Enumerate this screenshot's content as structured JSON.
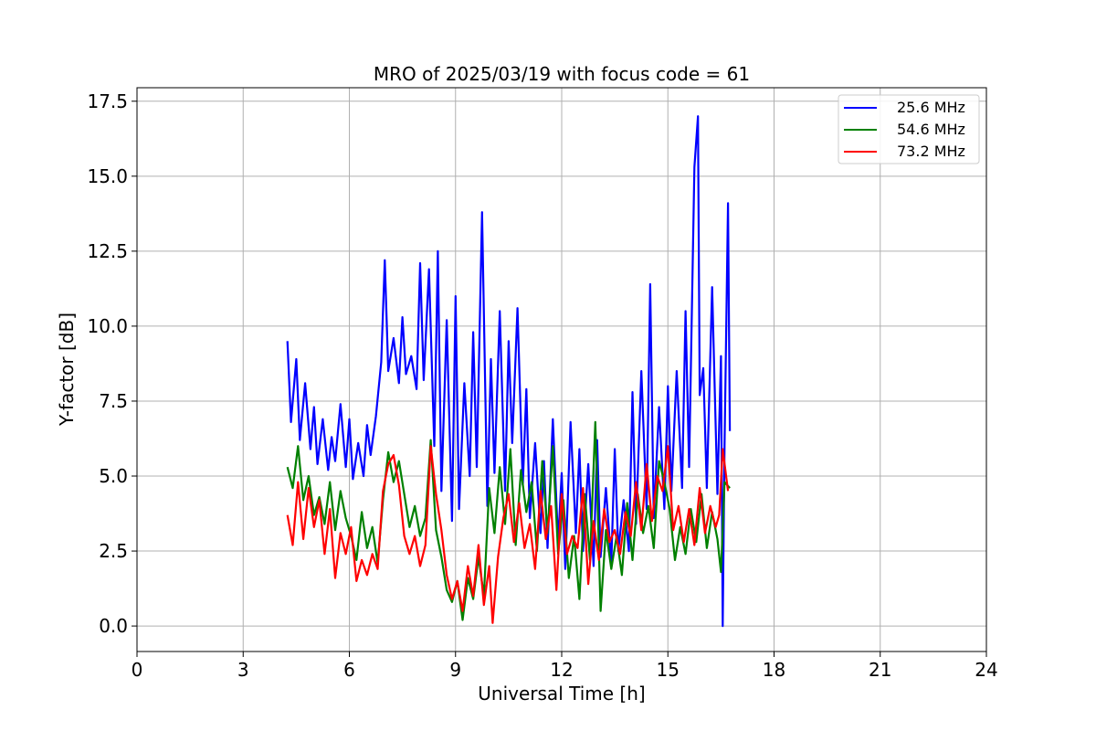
{
  "chart_data": {
    "type": "line",
    "title": "MRO of 2025/03/19 with focus code = 61",
    "xlabel": "Universal Time [h]",
    "ylabel": "Y-factor [dB]",
    "xlim": [
      0,
      24
    ],
    "ylim": [
      -0.85,
      17.95
    ],
    "xticks": [
      0,
      3,
      6,
      9,
      12,
      15,
      18,
      21,
      24
    ],
    "xtick_labels": [
      "0",
      "3",
      "6",
      "9",
      "12",
      "15",
      "18",
      "21",
      "24"
    ],
    "yticks": [
      0,
      2.5,
      5,
      7.5,
      10,
      12.5,
      15,
      17.5
    ],
    "ytick_labels": [
      "0.0",
      "2.5",
      "5.0",
      "7.5",
      "10.0",
      "12.5",
      "15.0",
      "17.5"
    ],
    "grid": true,
    "legend_position": "top-right",
    "series": [
      {
        "name": "25.6 MHz",
        "color": "#0000ff",
        "x": [
          4.25,
          4.35,
          4.5,
          4.6,
          4.75,
          4.9,
          5.0,
          5.1,
          5.25,
          5.4,
          5.5,
          5.6,
          5.75,
          5.9,
          6.0,
          6.1,
          6.25,
          6.4,
          6.5,
          6.6,
          6.75,
          6.9,
          7.0,
          7.1,
          7.25,
          7.4,
          7.5,
          7.6,
          7.75,
          7.9,
          8.0,
          8.1,
          8.25,
          8.4,
          8.5,
          8.6,
          8.75,
          8.9,
          9.0,
          9.1,
          9.25,
          9.4,
          9.5,
          9.6,
          9.75,
          9.9,
          10.0,
          10.1,
          10.25,
          10.4,
          10.5,
          10.6,
          10.75,
          10.9,
          11.0,
          11.1,
          11.25,
          11.4,
          11.5,
          11.6,
          11.75,
          11.9,
          12.0,
          12.1,
          12.25,
          12.4,
          12.5,
          12.6,
          12.75,
          12.9,
          13.0,
          13.1,
          13.25,
          13.4,
          13.5,
          13.6,
          13.75,
          13.9,
          14.0,
          14.1,
          14.25,
          14.4,
          14.5,
          14.6,
          14.75,
          14.9,
          15.0,
          15.1,
          15.25,
          15.4,
          15.5,
          15.6,
          15.75,
          15.85,
          15.9,
          16.0,
          16.1,
          16.25,
          16.4,
          16.5,
          16.55,
          16.6,
          16.7,
          16.75
        ],
        "y": [
          9.5,
          6.8,
          8.9,
          6.2,
          8.1,
          5.9,
          7.3,
          5.4,
          6.9,
          5.2,
          6.3,
          5.5,
          7.4,
          5.3,
          6.9,
          4.9,
          6.1,
          5.0,
          6.7,
          5.7,
          7.0,
          8.8,
          12.2,
          8.5,
          9.6,
          8.1,
          10.3,
          8.4,
          9.0,
          7.9,
          12.1,
          8.2,
          11.9,
          6.0,
          12.5,
          4.5,
          10.2,
          3.5,
          11.0,
          3.9,
          8.1,
          5.0,
          9.8,
          5.3,
          13.8,
          4.0,
          8.9,
          5.1,
          10.5,
          4.5,
          9.5,
          6.1,
          10.6,
          4.7,
          7.9,
          3.6,
          6.1,
          3.1,
          5.5,
          2.6,
          6.9,
          2.8,
          5.1,
          1.9,
          6.8,
          3.1,
          5.9,
          2.5,
          5.4,
          2.0,
          6.2,
          2.3,
          4.6,
          2.1,
          5.9,
          2.5,
          4.2,
          2.5,
          7.8,
          3.4,
          8.5,
          3.9,
          11.4,
          3.6,
          7.3,
          3.9,
          8.0,
          4.5,
          8.5,
          4.6,
          10.5,
          5.3,
          15.3,
          17.0,
          7.7,
          8.6,
          4.6,
          11.3,
          4.4,
          9.0,
          0.0,
          6.0,
          14.1,
          6.5
        ]
      },
      {
        "name": "54.6 MHz",
        "color": "#008000",
        "x": [
          4.25,
          4.4,
          4.55,
          4.7,
          4.85,
          5.0,
          5.15,
          5.3,
          5.45,
          5.6,
          5.75,
          5.9,
          6.05,
          6.2,
          6.35,
          6.5,
          6.65,
          6.8,
          6.95,
          7.1,
          7.25,
          7.4,
          7.55,
          7.7,
          7.85,
          8.0,
          8.15,
          8.3,
          8.45,
          8.6,
          8.75,
          8.9,
          9.05,
          9.2,
          9.35,
          9.5,
          9.65,
          9.8,
          9.95,
          10.1,
          10.25,
          10.4,
          10.55,
          10.7,
          10.85,
          11.0,
          11.15,
          11.3,
          11.45,
          11.6,
          11.75,
          11.9,
          12.05,
          12.2,
          12.35,
          12.5,
          12.65,
          12.8,
          12.95,
          13.1,
          13.25,
          13.4,
          13.55,
          13.7,
          13.85,
          14.0,
          14.15,
          14.3,
          14.45,
          14.6,
          14.75,
          14.9,
          15.05,
          15.2,
          15.35,
          15.5,
          15.65,
          15.8,
          15.95,
          16.1,
          16.25,
          16.4,
          16.5,
          16.6,
          16.75
        ],
        "y": [
          5.3,
          4.6,
          6.0,
          4.2,
          5.0,
          3.7,
          4.3,
          3.4,
          4.8,
          3.2,
          4.5,
          3.6,
          3.0,
          2.2,
          3.8,
          2.6,
          3.3,
          2.1,
          4.2,
          5.8,
          4.8,
          5.5,
          4.4,
          3.3,
          4.0,
          3.0,
          3.6,
          6.2,
          3.2,
          2.3,
          1.2,
          0.8,
          1.5,
          0.2,
          1.6,
          0.9,
          2.3,
          1.0,
          4.6,
          3.1,
          5.3,
          3.4,
          5.9,
          2.7,
          5.2,
          3.8,
          4.8,
          2.5,
          5.5,
          3.1,
          6.0,
          2.4,
          4.2,
          1.6,
          3.0,
          0.9,
          4.4,
          2.2,
          6.8,
          0.5,
          3.2,
          1.9,
          3.0,
          1.7,
          4.1,
          2.2,
          4.4,
          3.1,
          4.0,
          2.6,
          5.5,
          4.8,
          3.9,
          2.2,
          3.3,
          2.4,
          3.9,
          2.8,
          4.4,
          2.6,
          3.8,
          2.9,
          1.8,
          4.8,
          4.6
        ]
      },
      {
        "name": "73.2 MHz",
        "color": "#ff0000",
        "x": [
          4.25,
          4.4,
          4.55,
          4.7,
          4.85,
          5.0,
          5.15,
          5.3,
          5.45,
          5.6,
          5.75,
          5.9,
          6.05,
          6.2,
          6.35,
          6.5,
          6.65,
          6.8,
          6.95,
          7.1,
          7.25,
          7.4,
          7.55,
          7.7,
          7.85,
          8.0,
          8.15,
          8.3,
          8.45,
          8.6,
          8.75,
          8.9,
          9.05,
          9.2,
          9.35,
          9.5,
          9.65,
          9.8,
          9.95,
          10.05,
          10.2,
          10.35,
          10.5,
          10.65,
          10.8,
          10.95,
          11.1,
          11.25,
          11.4,
          11.55,
          11.7,
          11.85,
          12.0,
          12.15,
          12.3,
          12.45,
          12.6,
          12.75,
          12.9,
          13.05,
          13.2,
          13.35,
          13.5,
          13.65,
          13.8,
          13.95,
          14.1,
          14.25,
          14.4,
          14.55,
          14.7,
          14.85,
          15.0,
          15.15,
          15.3,
          15.45,
          15.6,
          15.75,
          15.9,
          16.05,
          16.2,
          16.35,
          16.45,
          16.55,
          16.7
        ],
        "y": [
          3.7,
          2.7,
          4.8,
          2.9,
          4.6,
          3.3,
          4.2,
          2.4,
          3.9,
          1.6,
          3.1,
          2.4,
          3.3,
          1.5,
          2.2,
          1.7,
          2.4,
          1.9,
          4.5,
          5.4,
          5.7,
          4.7,
          3.0,
          2.4,
          3.0,
          2.0,
          2.7,
          6.0,
          4.4,
          3.2,
          1.7,
          0.9,
          1.5,
          0.5,
          2.0,
          1.0,
          2.7,
          0.7,
          2.0,
          0.1,
          2.3,
          3.6,
          4.4,
          2.8,
          4.1,
          2.6,
          3.4,
          1.9,
          4.5,
          2.9,
          4.0,
          1.2,
          4.4,
          2.4,
          3.0,
          2.6,
          4.6,
          1.4,
          3.5,
          2.2,
          3.9,
          2.8,
          3.2,
          2.4,
          3.8,
          3.0,
          4.8,
          3.2,
          5.4,
          3.5,
          5.0,
          4.5,
          6.0,
          3.2,
          4.0,
          2.8,
          3.9,
          2.7,
          4.6,
          3.1,
          4.0,
          3.3,
          3.7,
          5.9,
          4.5
        ]
      }
    ]
  }
}
